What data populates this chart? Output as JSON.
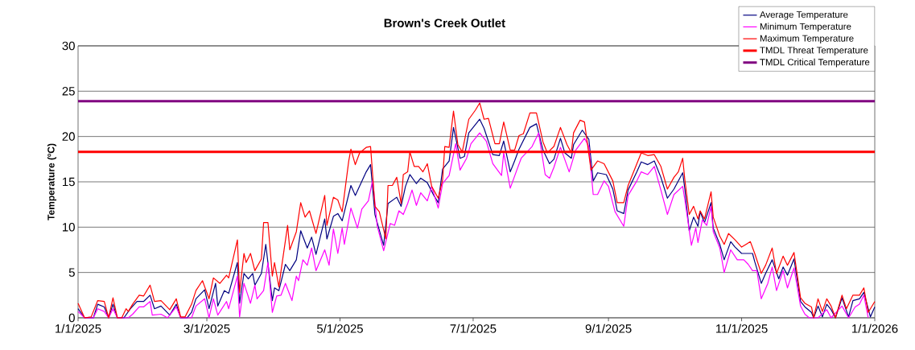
{
  "chart_data": {
    "type": "line",
    "title": "Brown's Creek Outlet",
    "ylabel": "Temperature (ºC)",
    "xlim": [
      "2025-01-01",
      "2026-01-01"
    ],
    "xticks": [
      {
        "value": "2025-01-01",
        "label": "1/1/2025"
      },
      {
        "value": "2025-03-01",
        "label": "3/1/2025"
      },
      {
        "value": "2025-05-01",
        "label": "5/1/2025"
      },
      {
        "value": "2025-07-01",
        "label": "7/1/2025"
      },
      {
        "value": "2025-09-01",
        "label": "9/1/2025"
      },
      {
        "value": "2025-11-01",
        "label": "11/1/2025"
      },
      {
        "value": "2026-01-01",
        "label": "1/1/2026"
      }
    ],
    "ylim": [
      0,
      30
    ],
    "yticks": [
      0,
      5,
      10,
      15,
      20,
      25,
      30
    ],
    "grid": "y",
    "legend": "top right",
    "series": [
      {
        "name": "Average Temperature",
        "color": "#000080",
        "x": [
          "2025-01-01",
          "2025-01-04",
          "2025-01-08",
          "2025-01-10",
          "2025-01-13",
          "2025-01-15",
          "2025-01-17",
          "2025-01-19",
          "2025-01-22",
          "2025-01-25",
          "2025-01-28",
          "2025-01-31",
          "2025-02-03",
          "2025-02-05",
          "2025-02-08",
          "2025-02-12",
          "2025-02-15",
          "2025-02-17",
          "2025-02-20",
          "2025-02-22",
          "2025-02-24",
          "2025-02-28",
          "2025-03-02",
          "2025-03-05",
          "2025-03-06",
          "2025-03-09",
          "2025-03-11",
          "2025-03-15",
          "2025-03-16",
          "2025-03-18",
          "2025-03-20",
          "2025-03-22",
          "2025-03-23",
          "2025-03-26",
          "2025-03-28",
          "2025-03-31",
          "2025-04-01",
          "2025-04-03",
          "2025-04-06",
          "2025-04-08",
          "2025-04-11",
          "2025-04-13",
          "2025-04-16",
          "2025-04-18",
          "2025-04-20",
          "2025-04-24",
          "2025-04-25",
          "2025-04-28",
          "2025-04-30",
          "2025-05-02",
          "2025-05-06",
          "2025-05-08",
          "2025-05-13",
          "2025-05-15",
          "2025-05-17",
          "2025-05-21",
          "2025-05-23",
          "2025-05-27",
          "2025-05-29",
          "2025-05-31",
          "2025-06-02",
          "2025-06-05",
          "2025-06-07",
          "2025-06-10",
          "2025-06-13",
          "2025-06-15",
          "2025-06-17",
          "2025-06-20",
          "2025-06-22",
          "2025-06-25",
          "2025-06-27",
          "2025-06-29",
          "2025-07-04",
          "2025-07-06",
          "2025-07-10",
          "2025-07-13",
          "2025-07-15",
          "2025-07-18",
          "2025-07-20",
          "2025-07-22",
          "2025-07-27",
          "2025-07-30",
          "2025-08-02",
          "2025-08-05",
          "2025-08-07",
          "2025-08-10",
          "2025-08-12",
          "2025-08-15",
          "2025-08-16",
          "2025-08-20",
          "2025-08-23",
          "2025-08-25",
          "2025-08-27",
          "2025-08-31",
          "2025-09-03",
          "2025-09-05",
          "2025-09-08",
          "2025-09-10",
          "2025-09-14",
          "2025-09-16",
          "2025-09-19",
          "2025-09-22",
          "2025-09-25",
          "2025-09-28",
          "2025-10-01",
          "2025-10-05",
          "2025-10-06",
          "2025-10-08",
          "2025-10-10",
          "2025-10-12",
          "2025-10-13",
          "2025-10-15",
          "2025-10-18",
          "2025-10-19",
          "2025-10-22",
          "2025-10-24",
          "2025-10-27",
          "2025-10-29",
          "2025-11-01",
          "2025-11-03",
          "2025-11-06",
          "2025-11-07",
          "2025-11-10",
          "2025-11-12",
          "2025-11-15",
          "2025-11-18",
          "2025-11-20",
          "2025-11-22",
          "2025-11-25",
          "2025-11-28",
          "2025-11-30",
          "2025-12-03",
          "2025-12-04",
          "2025-12-06",
          "2025-12-08",
          "2025-12-10",
          "2025-12-12",
          "2025-12-14",
          "2025-12-17",
          "2025-12-20",
          "2025-12-22",
          "2025-12-25",
          "2025-12-27",
          "2025-12-30",
          "2026-01-01"
        ],
        "values": [
          1.0,
          0,
          0,
          1.5,
          1.2,
          0,
          1.5,
          0,
          0,
          1.0,
          1.8,
          1.8,
          2.5,
          1.0,
          1.3,
          0.3,
          1.5,
          0,
          0,
          0.6,
          2.1,
          3.1,
          1.0,
          3.8,
          1.3,
          3.0,
          2.7,
          6.1,
          1.6,
          4.9,
          4.3,
          4.9,
          3.6,
          4.9,
          8.1,
          1.9,
          3.3,
          3.0,
          5.9,
          5.2,
          6.4,
          9.6,
          7.7,
          8.9,
          7.0,
          10.9,
          8.7,
          11.2,
          11.5,
          10.7,
          14.6,
          13.5,
          16.1,
          16.9,
          11.4,
          8.0,
          12.6,
          13.3,
          12.3,
          14.5,
          15.8,
          14.8,
          15.4,
          14.9,
          13.5,
          12.7,
          16.4,
          17.3,
          21.0,
          17.6,
          17.8,
          20.4,
          21.9,
          20.9,
          18.0,
          17.9,
          19.5,
          16.1,
          17.3,
          18.6,
          21.0,
          21.4,
          18.5,
          17.0,
          17.5,
          19.8,
          18.2,
          17.6,
          19.1,
          20.7,
          19.7,
          15.1,
          16.0,
          15.8,
          14.2,
          11.8,
          11.5,
          14.1,
          16.1,
          17.2,
          16.9,
          17.3,
          15.5,
          13.2,
          14.2,
          16.0,
          14.2,
          9.6,
          11.1,
          10.1,
          11.7,
          10.5,
          12.7,
          9.9,
          8.1,
          6.4,
          8.4,
          7.8,
          7.1,
          7.1,
          7.1,
          6.2,
          3.8,
          4.9,
          6.4,
          4.3,
          5.6,
          4.7,
          6.5,
          1.8,
          1.2,
          0.6,
          0,
          1.3,
          0.1,
          1.5,
          0.9,
          0,
          2.2,
          0.1,
          1.9,
          2.1,
          2.8,
          0.1,
          1.2
        ]
      },
      {
        "name": "Minimum Temperature",
        "color": "#ff00ff",
        "x": [
          "2025-01-01",
          "2025-01-04",
          "2025-01-08",
          "2025-01-10",
          "2025-01-13",
          "2025-01-15",
          "2025-01-17",
          "2025-01-19",
          "2025-01-24",
          "2025-01-26",
          "2025-01-29",
          "2025-01-31",
          "2025-02-03",
          "2025-02-04",
          "2025-02-08",
          "2025-02-11",
          "2025-02-15",
          "2025-02-17",
          "2025-02-22",
          "2025-02-24",
          "2025-02-28",
          "2025-03-02",
          "2025-03-04",
          "2025-03-06",
          "2025-03-10",
          "2025-03-11",
          "2025-03-15",
          "2025-03-16",
          "2025-03-18",
          "2025-03-21",
          "2025-03-23",
          "2025-03-24",
          "2025-03-27",
          "2025-03-29",
          "2025-03-31",
          "2025-04-02",
          "2025-04-04",
          "2025-04-06",
          "2025-04-09",
          "2025-04-11",
          "2025-04-12",
          "2025-04-14",
          "2025-04-16",
          "2025-04-18",
          "2025-04-20",
          "2025-04-24",
          "2025-04-26",
          "2025-04-28",
          "2025-04-30",
          "2025-05-02",
          "2025-05-03",
          "2025-05-06",
          "2025-05-09",
          "2025-05-11",
          "2025-05-14",
          "2025-05-16",
          "2025-05-18",
          "2025-05-21",
          "2025-05-24",
          "2025-05-26",
          "2025-05-28",
          "2025-05-30",
          "2025-06-01",
          "2025-06-03",
          "2025-06-05",
          "2025-06-07",
          "2025-06-10",
          "2025-06-12",
          "2025-06-15",
          "2025-06-17",
          "2025-06-20",
          "2025-06-23",
          "2025-06-25",
          "2025-06-28",
          "2025-06-30",
          "2025-07-04",
          "2025-07-07",
          "2025-07-10",
          "2025-07-14",
          "2025-07-15",
          "2025-07-18",
          "2025-07-21",
          "2025-07-23",
          "2025-07-28",
          "2025-07-31",
          "2025-08-03",
          "2025-08-05",
          "2025-08-07",
          "2025-08-10",
          "2025-08-14",
          "2025-08-17",
          "2025-08-21",
          "2025-08-23",
          "2025-08-25",
          "2025-08-27",
          "2025-08-30",
          "2025-09-01",
          "2025-09-04",
          "2025-09-08",
          "2025-09-10",
          "2025-09-14",
          "2025-09-16",
          "2025-09-19",
          "2025-09-22",
          "2025-09-25",
          "2025-09-28",
          "2025-10-01",
          "2025-10-05",
          "2025-10-06",
          "2025-10-09",
          "2025-10-11",
          "2025-10-12",
          "2025-10-14",
          "2025-10-16",
          "2025-10-18",
          "2025-10-19",
          "2025-10-22",
          "2025-10-24",
          "2025-10-27",
          "2025-10-30",
          "2025-11-02",
          "2025-11-04",
          "2025-11-06",
          "2025-11-08",
          "2025-11-10",
          "2025-11-13",
          "2025-11-15",
          "2025-11-17",
          "2025-11-20",
          "2025-11-22",
          "2025-11-25",
          "2025-11-28",
          "2025-11-30",
          "2025-12-02",
          "2025-12-06",
          "2025-12-10",
          "2025-12-12",
          "2025-12-17",
          "2025-12-20",
          "2025-12-23",
          "2025-12-25",
          "2025-12-27",
          "2025-12-29"
        ],
        "values": [
          0.7,
          0,
          0,
          1.0,
          0.7,
          0,
          1.0,
          0,
          0,
          0.4,
          1.2,
          1.2,
          1.8,
          0.3,
          0.4,
          0,
          1.2,
          0,
          0,
          1.3,
          2.1,
          0,
          2.1,
          0.3,
          1.8,
          1.0,
          4.6,
          0.1,
          3.8,
          1.6,
          3.6,
          2.1,
          3.0,
          6.1,
          0.6,
          2.4,
          2.5,
          3.8,
          1.9,
          4.6,
          4.1,
          6.4,
          5.8,
          7.7,
          5.2,
          7.5,
          5.8,
          9.8,
          7.1,
          9.9,
          8.1,
          12.1,
          9.9,
          12.0,
          12.9,
          15.2,
          10.2,
          7.4,
          10.4,
          10.2,
          11.8,
          11.4,
          12.6,
          14.1,
          12.4,
          13.8,
          12.9,
          14.5,
          12.1,
          14.8,
          15.7,
          19.2,
          16.3,
          17.6,
          19.2,
          20.4,
          19.5,
          17.0,
          15.7,
          18.2,
          14.3,
          16.3,
          17.6,
          18.9,
          20.4,
          15.8,
          15.4,
          16.6,
          18.8,
          16.1,
          18.5,
          19.8,
          18.9,
          13.6,
          13.6,
          15.1,
          14.5,
          11.7,
          10.1,
          13.5,
          15.1,
          16.1,
          15.8,
          16.7,
          14.1,
          11.4,
          13.6,
          14.5,
          13.0,
          8.0,
          9.9,
          8.3,
          10.8,
          10.2,
          12.3,
          9.5,
          7.7,
          5.0,
          7.5,
          6.4,
          6.4,
          5.9,
          5.2,
          5.2,
          2.1,
          3.8,
          5.6,
          3.0,
          5.2,
          3.3,
          5.5,
          1.3,
          0.4,
          0,
          0,
          0.9,
          0,
          1.3,
          0,
          1.2,
          1.5,
          2.5,
          0
        ]
      },
      {
        "name": "Maximum Temperature",
        "color": "#ff0000",
        "x": [
          "2025-01-01",
          "2025-01-04",
          "2025-01-07",
          "2025-01-10",
          "2025-01-13",
          "2025-01-15",
          "2025-01-17",
          "2025-01-19",
          "2025-01-21",
          "2025-01-23",
          "2025-01-24",
          "2025-01-26",
          "2025-01-29",
          "2025-01-31",
          "2025-02-03",
          "2025-02-05",
          "2025-02-08",
          "2025-02-12",
          "2025-02-15",
          "2025-02-17",
          "2025-02-19",
          "2025-02-22",
          "2025-02-24",
          "2025-02-27",
          "2025-03-02",
          "2025-03-04",
          "2025-03-07",
          "2025-03-10",
          "2025-03-11",
          "2025-03-15",
          "2025-03-16",
          "2025-03-18",
          "2025-03-19",
          "2025-03-21",
          "2025-03-23",
          "2025-03-26",
          "2025-03-27",
          "2025-03-29",
          "2025-03-31",
          "2025-04-01",
          "2025-04-03",
          "2025-04-04",
          "2025-04-07",
          "2025-04-08",
          "2025-04-11",
          "2025-04-13",
          "2025-04-15",
          "2025-04-17",
          "2025-04-20",
          "2025-04-24",
          "2025-04-25",
          "2025-04-28",
          "2025-04-30",
          "2025-05-01",
          "2025-05-02",
          "2025-05-05",
          "2025-05-06",
          "2025-05-08",
          "2025-05-10",
          "2025-05-13",
          "2025-05-15",
          "2025-05-17",
          "2025-05-19",
          "2025-05-22",
          "2025-05-23",
          "2025-05-25",
          "2025-05-27",
          "2025-05-29",
          "2025-05-30",
          "2025-06-01",
          "2025-06-02",
          "2025-06-04",
          "2025-06-06",
          "2025-06-08",
          "2025-06-10",
          "2025-06-12",
          "2025-06-15",
          "2025-06-17",
          "2025-06-18",
          "2025-06-20",
          "2025-06-22",
          "2025-06-24",
          "2025-06-26",
          "2025-06-29",
          "2025-07-02",
          "2025-07-04",
          "2025-07-06",
          "2025-07-08",
          "2025-07-11",
          "2025-07-13",
          "2025-07-15",
          "2025-07-18",
          "2025-07-20",
          "2025-07-22",
          "2025-07-24",
          "2025-07-27",
          "2025-07-30",
          "2025-08-02",
          "2025-08-04",
          "2025-08-07",
          "2025-08-10",
          "2025-08-13",
          "2025-08-15",
          "2025-08-16",
          "2025-08-19",
          "2025-08-21",
          "2025-08-24",
          "2025-08-27",
          "2025-08-30",
          "2025-09-03",
          "2025-09-05",
          "2025-09-08",
          "2025-09-10",
          "2025-09-11",
          "2025-09-14",
          "2025-09-16",
          "2025-09-19",
          "2025-09-22",
          "2025-09-25",
          "2025-09-28",
          "2025-10-01",
          "2025-10-03",
          "2025-10-05",
          "2025-10-06",
          "2025-10-08",
          "2025-10-10",
          "2025-10-12",
          "2025-10-13",
          "2025-10-15",
          "2025-10-18",
          "2025-10-19",
          "2025-10-22",
          "2025-10-24",
          "2025-10-26",
          "2025-10-29",
          "2025-11-01",
          "2025-11-03",
          "2025-11-05",
          "2025-11-07",
          "2025-11-10",
          "2025-11-12",
          "2025-11-15",
          "2025-11-17",
          "2025-11-20",
          "2025-11-22",
          "2025-11-25",
          "2025-11-28",
          "2025-11-30",
          "2025-12-03",
          "2025-12-04",
          "2025-12-06",
          "2025-12-08",
          "2025-12-10",
          "2025-12-12",
          "2025-12-14",
          "2025-12-17",
          "2025-12-19",
          "2025-12-22",
          "2025-12-25",
          "2025-12-27",
          "2025-12-29",
          "2026-01-01"
        ],
        "values": [
          1.6,
          0,
          0.1,
          1.9,
          1.8,
          0,
          2.2,
          0,
          0,
          1.0,
          0.7,
          1.5,
          2.5,
          2.4,
          3.6,
          1.8,
          1.9,
          0.9,
          2.1,
          0.1,
          0.1,
          1.5,
          3.0,
          4.1,
          2.1,
          4.4,
          3.8,
          4.7,
          4.4,
          8.6,
          2.8,
          7.1,
          6.1,
          7.1,
          5.2,
          6.5,
          10.5,
          10.5,
          4.6,
          6.1,
          3.4,
          5.2,
          10.2,
          7.5,
          9.5,
          12.7,
          11.1,
          11.8,
          9.3,
          13.5,
          10.2,
          13.3,
          13.0,
          12.3,
          11.7,
          17.3,
          18.6,
          16.9,
          18.2,
          18.8,
          18.9,
          12.3,
          11.7,
          8.7,
          14.6,
          14.6,
          15.5,
          12.6,
          15.8,
          16.1,
          18.3,
          16.7,
          16.7,
          16.1,
          17.0,
          14.5,
          13.2,
          15.2,
          18.9,
          18.8,
          22.8,
          19.1,
          18.3,
          21.9,
          22.9,
          23.7,
          21.9,
          22.0,
          19.2,
          19.2,
          21.6,
          18.5,
          18.5,
          20.1,
          20.3,
          22.6,
          22.6,
          19.4,
          18.2,
          18.9,
          21.0,
          19.1,
          18.2,
          20.4,
          21.8,
          21.6,
          16.3,
          17.3,
          17.0,
          15.1,
          12.7,
          12.7,
          14.6,
          15.2,
          17.0,
          18.2,
          17.9,
          18.0,
          16.7,
          14.2,
          15.5,
          16.1,
          17.6,
          15.2,
          11.4,
          12.3,
          10.9,
          11.8,
          10.9,
          13.9,
          11.1,
          9.0,
          8.1,
          9.3,
          8.6,
          7.8,
          8.1,
          8.4,
          7.1,
          4.9,
          5.8,
          7.7,
          4.9,
          6.8,
          5.8,
          7.2,
          2.2,
          1.6,
          1.2,
          0,
          2.1,
          0.7,
          2.1,
          1.3,
          0,
          2.5,
          1.0,
          2.5,
          2.5,
          3.3,
          0.6,
          1.8
        ]
      }
    ],
    "ref_lines": [
      {
        "axis": "y",
        "value": 18.3,
        "label": "TMDL Threat Temperature",
        "color": "#ff0000"
      },
      {
        "axis": "y",
        "value": 23.9,
        "label": "TMDL Critical Temperature",
        "color": "#800080"
      }
    ]
  }
}
